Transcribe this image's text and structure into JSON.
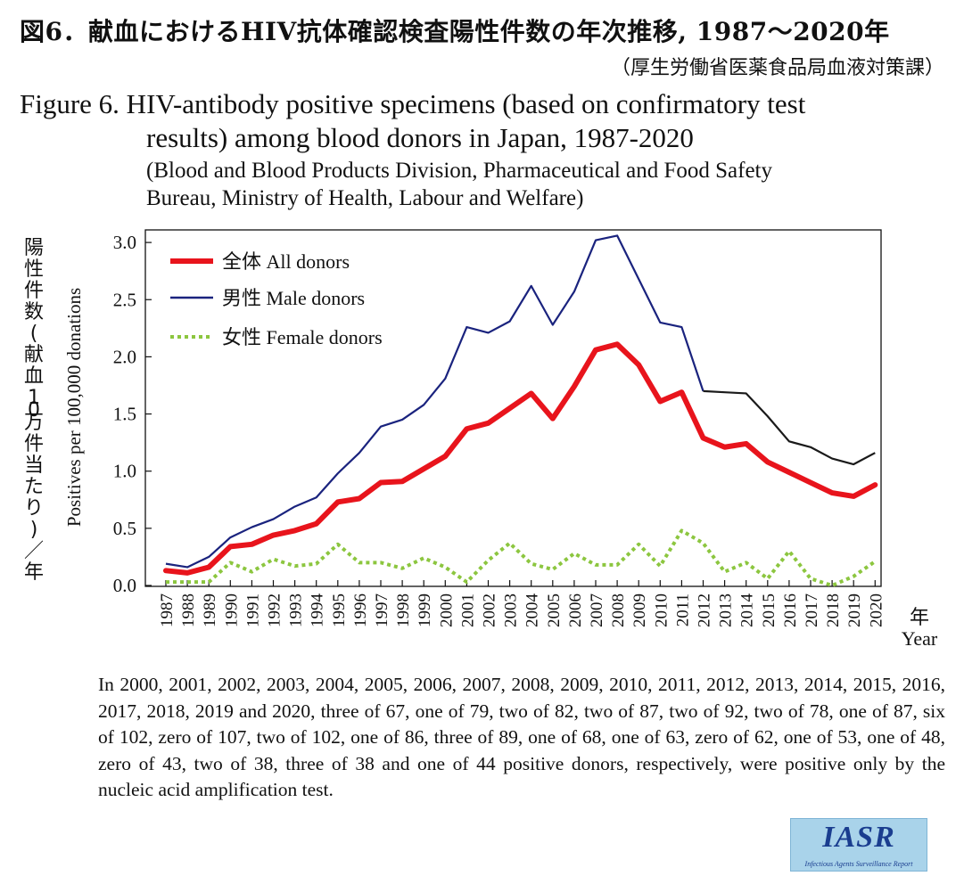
{
  "titles": {
    "jp_title": "図6．献血におけるHIV抗体確認検査陽性件数の年次推移, 1987〜2020年",
    "jp_source": "（厚生労働省医薬食品局血液対策課）",
    "en_title_line1": "Figure 6. HIV-antibody positive specimens (based on confirmatory test",
    "en_title_line2": "results) among blood donors in Japan, 1987-2020",
    "en_source_line1": "(Blood and Blood Products Division, Pharmaceutical and Food Safety",
    "en_source_line2": " Bureau, Ministry of Health, Labour and Welfare)"
  },
  "note": "In 2000, 2001, 2002, 2003, 2004, 2005, 2006, 2007, 2008, 2009, 2010, 2011, 2012, 2013, 2014, 2015, 2016, 2017, 2018, 2019 and 2020, three of 67, one of 79, two of 82, two of 87, two of 92, two of 78, one of 87, six of 102, zero of 107, two of 102, one of 86, three of 89, one of 68, one of 63, zero of 62, one of 53, one of 48, zero of 43, two of 38, three of 38 and one of 44 positive donors, respectively, were positive only by the nucleic acid amplification test.",
  "logo": {
    "text": "IASR",
    "subtext": "Infectious Agents Surveillance Report"
  },
  "chart_data": {
    "type": "line",
    "ylabel_jp": "陽性件数(献血10万件当たり)／年",
    "ylabel_en": "Positives per 100,000 donations",
    "xlabel_jp": "年",
    "xlabel_en": "Year",
    "ylim": [
      0,
      3.0
    ],
    "yticks": [
      "0.0",
      "0.5",
      "1.0",
      "1.5",
      "2.0",
      "2.5",
      "3.0"
    ],
    "grid": false,
    "legend_position": "top-left",
    "x": [
      "1987",
      "1988",
      "1989",
      "1990",
      "1991",
      "1992",
      "1993",
      "1994",
      "1995",
      "1996",
      "1997",
      "1998",
      "1999",
      "2000",
      "2001",
      "2002",
      "2003",
      "2004",
      "2005",
      "2006",
      "2007",
      "2008",
      "2009",
      "2010",
      "2011",
      "2012",
      "2013",
      "2014",
      "2015",
      "2016",
      "2017",
      "2018",
      "2019",
      "2020"
    ],
    "series": [
      {
        "name": "全体 All donors",
        "color": "#e8141c",
        "style": "thick",
        "values": [
          0.13,
          0.11,
          0.16,
          0.34,
          0.36,
          0.44,
          0.48,
          0.54,
          0.73,
          0.76,
          0.9,
          0.91,
          1.02,
          1.13,
          1.37,
          1.42,
          1.55,
          1.68,
          1.46,
          1.74,
          2.06,
          2.11,
          1.93,
          1.61,
          1.69,
          1.29,
          1.21,
          1.24,
          1.08,
          0.99,
          0.9,
          0.81,
          0.78,
          0.88
        ]
      },
      {
        "name": "男性 Male donors",
        "color": "#1a237e",
        "color_after_2012": "#1a1a1a",
        "style": "thin",
        "values": [
          0.19,
          0.16,
          0.25,
          0.42,
          0.51,
          0.58,
          0.69,
          0.77,
          0.98,
          1.16,
          1.39,
          1.45,
          1.58,
          1.81,
          2.26,
          2.21,
          2.31,
          2.62,
          2.28,
          2.57,
          3.02,
          3.06,
          2.68,
          2.3,
          2.26,
          1.7,
          1.69,
          1.68,
          1.48,
          1.26,
          1.21,
          1.11,
          1.06,
          1.16
        ]
      },
      {
        "name": "女性 Female donors",
        "color": "#8cc63f",
        "style": "dotted",
        "values": [
          0.03,
          0.03,
          0.03,
          0.2,
          0.12,
          0.23,
          0.17,
          0.19,
          0.36,
          0.2,
          0.2,
          0.15,
          0.24,
          0.16,
          0.03,
          0.22,
          0.37,
          0.19,
          0.14,
          0.28,
          0.18,
          0.18,
          0.36,
          0.17,
          0.48,
          0.37,
          0.12,
          0.2,
          0.06,
          0.3,
          0.06,
          0.0,
          0.08,
          0.21
        ]
      }
    ]
  }
}
